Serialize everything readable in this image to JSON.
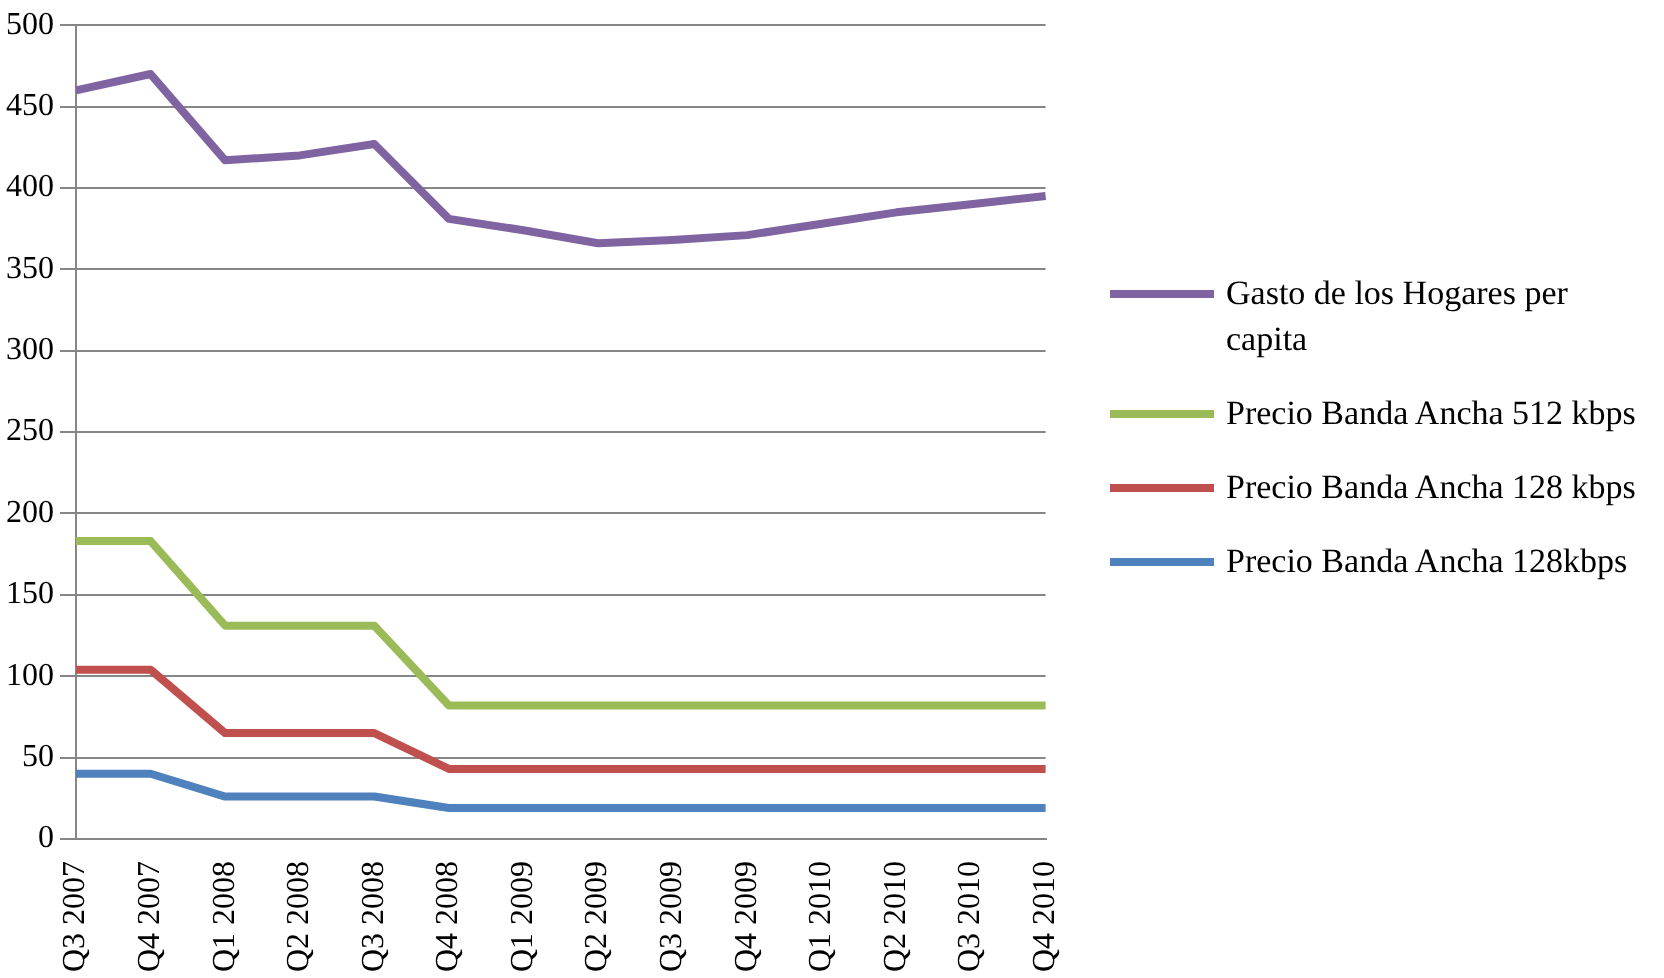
{
  "chart_data": {
    "type": "line",
    "categories": [
      "Q3 2007",
      "Q4 2007",
      "Q1 2008",
      "Q2 2008",
      "Q3 2008",
      "Q4 2008",
      "Q1 2009",
      "Q2 2009",
      "Q3 2009",
      "Q4 2009",
      "Q1 2010",
      "Q2 2010",
      "Q3 2010",
      "Q4 2010"
    ],
    "series": [
      {
        "name": "Gasto de los Hogares per capita",
        "color": "#8064a2",
        "values": [
          460,
          470,
          417,
          420,
          427,
          381,
          374,
          366,
          368,
          371,
          378,
          385,
          390,
          395
        ]
      },
      {
        "name": "Precio Banda Ancha 512 kbps",
        "color": "#9bbb59",
        "values": [
          183,
          183,
          131,
          131,
          131,
          82,
          82,
          82,
          82,
          82,
          82,
          82,
          82,
          82
        ]
      },
      {
        "name": "Precio Banda Ancha 128 kbps",
        "color": "#c0504d",
        "values": [
          104,
          104,
          65,
          65,
          65,
          43,
          43,
          43,
          43,
          43,
          43,
          43,
          43,
          43
        ]
      },
      {
        "name": "Precio Banda Ancha 128kbps",
        "color": "#4f81bd",
        "values": [
          40,
          40,
          26,
          26,
          26,
          19,
          19,
          19,
          19,
          19,
          19,
          19,
          19,
          19
        ]
      }
    ],
    "ylim": [
      0,
      500
    ],
    "yticks": [
      0,
      50,
      100,
      150,
      200,
      250,
      300,
      350,
      400,
      450,
      500
    ],
    "grid": "y",
    "legend": "right",
    "marker": "none",
    "line_style": "solid"
  }
}
